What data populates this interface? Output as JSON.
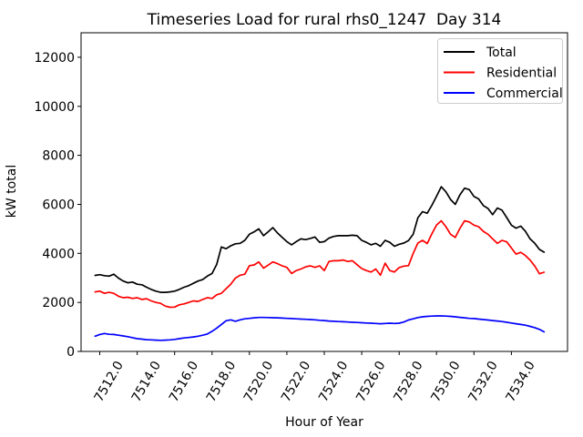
{
  "chart_data": {
    "type": "line",
    "title": "Timeseries Load for rural rhs0_1247  Day 314",
    "xlabel": "Hour of Year",
    "ylabel": "kW total",
    "xlim": [
      7511,
      7537
    ],
    "ylim": [
      0,
      13000
    ],
    "grid": false,
    "legend_position": "upper right",
    "legend_border_color": "#cccccc",
    "xticks": [
      7512,
      7514,
      7516,
      7518,
      7520,
      7522,
      7524,
      7526,
      7528,
      7530,
      7532,
      7534
    ],
    "xtick_labels": [
      "7512.0",
      "7514.0",
      "7516.0",
      "7518.0",
      "7520.0",
      "7522.0",
      "7524.0",
      "7526.0",
      "7528.0",
      "7530.0",
      "7532.0",
      "7534.0"
    ],
    "yticks": [
      0,
      2000,
      4000,
      6000,
      8000,
      10000,
      12000
    ],
    "ytick_labels": [
      "0",
      "2000",
      "4000",
      "6000",
      "8000",
      "10000",
      "12000"
    ],
    "x": [
      7511.75,
      7512.0,
      7512.25,
      7512.5,
      7512.75,
      7513.0,
      7513.25,
      7513.5,
      7513.75,
      7514.0,
      7514.25,
      7514.5,
      7514.75,
      7515.0,
      7515.25,
      7515.5,
      7515.75,
      7516.0,
      7516.25,
      7516.5,
      7516.75,
      7517.0,
      7517.25,
      7517.5,
      7517.75,
      7518.0,
      7518.25,
      7518.5,
      7518.75,
      7519.0,
      7519.25,
      7519.5,
      7519.75,
      7520.0,
      7520.25,
      7520.5,
      7520.75,
      7521.0,
      7521.25,
      7521.5,
      7521.75,
      7522.0,
      7522.25,
      7522.5,
      7522.75,
      7523.0,
      7523.25,
      7523.5,
      7523.75,
      7524.0,
      7524.25,
      7524.5,
      7524.75,
      7525.0,
      7525.25,
      7525.5,
      7525.75,
      7526.0,
      7526.25,
      7526.5,
      7526.75,
      7527.0,
      7527.25,
      7527.5,
      7527.75,
      7528.0,
      7528.25,
      7528.5,
      7528.75,
      7529.0,
      7529.25,
      7529.5,
      7529.75,
      7530.0,
      7530.25,
      7530.5,
      7530.75,
      7531.0,
      7531.25,
      7531.5,
      7531.75,
      7532.0,
      7532.25,
      7532.5,
      7532.75,
      7533.0,
      7533.25,
      7533.5,
      7533.75,
      7534.0,
      7534.25,
      7534.5,
      7534.75,
      7535.0,
      7535.25,
      7535.5,
      7535.75
    ],
    "series": [
      {
        "name": "Total",
        "color": "#000000",
        "values": [
          3100,
          3130,
          3090,
          3070,
          3150,
          2990,
          2870,
          2800,
          2830,
          2740,
          2720,
          2620,
          2530,
          2460,
          2410,
          2410,
          2430,
          2460,
          2530,
          2620,
          2680,
          2780,
          2870,
          2930,
          3070,
          3180,
          3550,
          4260,
          4190,
          4310,
          4390,
          4410,
          4530,
          4780,
          4880,
          5000,
          4720,
          4880,
          5050,
          4830,
          4650,
          4480,
          4350,
          4480,
          4590,
          4560,
          4610,
          4670,
          4450,
          4480,
          4620,
          4690,
          4720,
          4720,
          4720,
          4740,
          4720,
          4530,
          4450,
          4350,
          4410,
          4290,
          4530,
          4450,
          4290,
          4370,
          4420,
          4520,
          4780,
          5450,
          5700,
          5640,
          5960,
          6330,
          6720,
          6510,
          6200,
          6000,
          6390,
          6660,
          6600,
          6320,
          6220,
          5950,
          5830,
          5580,
          5850,
          5760,
          5460,
          5150,
          5030,
          5110,
          4900,
          4590,
          4410,
          4160,
          4050
        ]
      },
      {
        "name": "Residential",
        "color": "#ff0000",
        "values": [
          2430,
          2460,
          2370,
          2410,
          2370,
          2250,
          2190,
          2210,
          2160,
          2190,
          2120,
          2150,
          2060,
          2000,
          1960,
          1850,
          1800,
          1810,
          1900,
          1940,
          2000,
          2060,
          2040,
          2120,
          2190,
          2160,
          2310,
          2370,
          2560,
          2740,
          2990,
          3110,
          3150,
          3500,
          3530,
          3650,
          3400,
          3520,
          3650,
          3580,
          3490,
          3430,
          3180,
          3300,
          3360,
          3450,
          3490,
          3430,
          3490,
          3300,
          3670,
          3700,
          3700,
          3730,
          3670,
          3700,
          3540,
          3380,
          3300,
          3240,
          3360,
          3110,
          3600,
          3300,
          3240,
          3420,
          3480,
          3500,
          4000,
          4420,
          4530,
          4400,
          4800,
          5150,
          5330,
          5090,
          4780,
          4650,
          5020,
          5330,
          5280,
          5150,
          5090,
          4900,
          4780,
          4590,
          4410,
          4530,
          4470,
          4220,
          3970,
          4040,
          3910,
          3730,
          3480,
          3170,
          3230
        ]
      },
      {
        "name": "Commercial",
        "color": "#0000ff",
        "values": [
          620,
          690,
          730,
          700,
          690,
          660,
          630,
          600,
          560,
          520,
          500,
          480,
          470,
          460,
          455,
          460,
          470,
          490,
          520,
          550,
          570,
          590,
          620,
          660,
          710,
          820,
          950,
          1100,
          1250,
          1290,
          1230,
          1290,
          1330,
          1350,
          1370,
          1385,
          1385,
          1380,
          1375,
          1370,
          1360,
          1350,
          1340,
          1330,
          1320,
          1310,
          1300,
          1290,
          1270,
          1260,
          1240,
          1230,
          1220,
          1210,
          1200,
          1190,
          1180,
          1170,
          1160,
          1150,
          1140,
          1130,
          1140,
          1150,
          1140,
          1150,
          1200,
          1280,
          1330,
          1380,
          1410,
          1430,
          1440,
          1450,
          1450,
          1440,
          1430,
          1410,
          1390,
          1370,
          1350,
          1340,
          1320,
          1300,
          1280,
          1260,
          1240,
          1220,
          1190,
          1160,
          1130,
          1100,
          1070,
          1020,
          970,
          900,
          800
        ]
      }
    ]
  }
}
